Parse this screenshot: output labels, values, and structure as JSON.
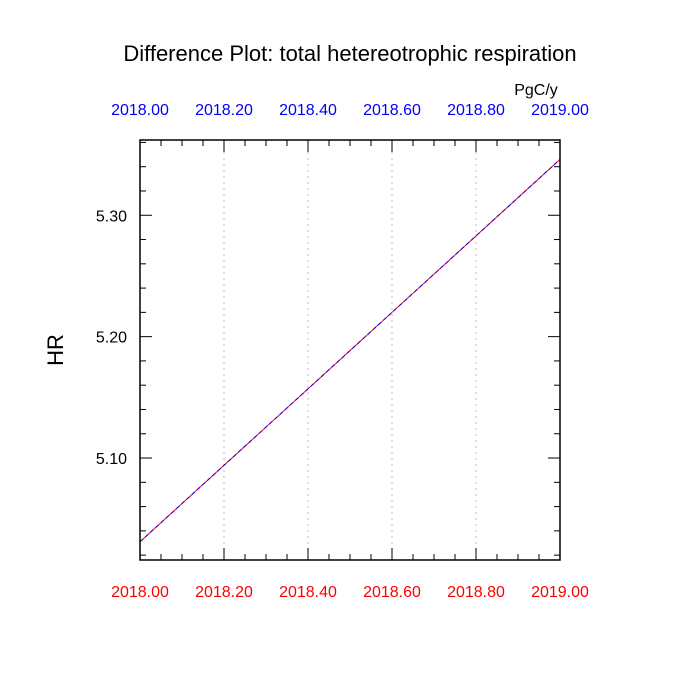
{
  "chart_data": {
    "type": "line",
    "title": "Difference Plot: total hetereotrophic respiration",
    "units": "PgC/y",
    "ylabel": "HR",
    "xlim": [
      2018.0,
      2019.0
    ],
    "ylim": [
      5.016,
      5.362
    ],
    "grid": "vertical dotted",
    "x_ticks_bottom": [
      "2018.00",
      "2018.20",
      "2018.40",
      "2018.60",
      "2018.80",
      "2019.00"
    ],
    "x_ticks_top": [
      "2018.00",
      "2018.20",
      "2018.40",
      "2018.60",
      "2018.80",
      "2019.00"
    ],
    "y_ticks": [
      "5.10",
      "5.20",
      "5.30"
    ],
    "y_tick_values": [
      5.1,
      5.2,
      5.3
    ],
    "x_tick_values": [
      2018.0,
      2018.2,
      2018.4,
      2018.6,
      2018.8,
      2019.0
    ],
    "series": [
      {
        "x": [
          2018.0,
          2019.0
        ],
        "values": [
          5.031,
          5.346
        ],
        "color": "#ff0000",
        "style": "solid"
      },
      {
        "x": [
          2018.0,
          2019.0
        ],
        "values": [
          5.031,
          5.346
        ],
        "color": "#0000ff",
        "style": "dashed"
      }
    ],
    "bottom_tick_color": "#ff0000",
    "top_tick_color": "#0000ff"
  }
}
